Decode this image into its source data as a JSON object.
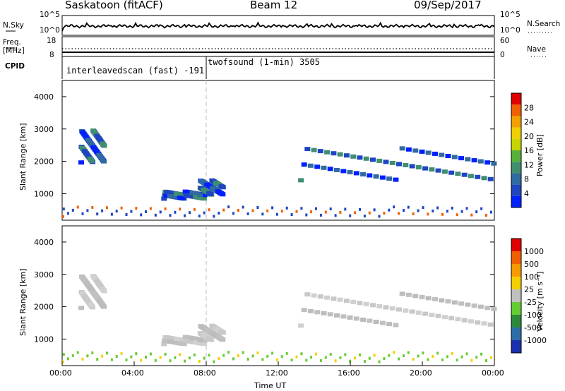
{
  "header": {
    "radar": "Saskatoon (fitACF)",
    "beam": "Beam 12",
    "date": "09/Sep/2017"
  },
  "top_panels": {
    "nsky_label": "N.Sky",
    "nsky_ticks": [
      "10^5",
      "10^0"
    ],
    "nsearch_label": "N.Search",
    "nsearch_ticks": [
      "10^5",
      "10^0"
    ],
    "freq_label": "Freq.",
    "freq_unit": "[MHz]",
    "freq_ticks": [
      "18",
      "8"
    ],
    "nave_label": "Nave",
    "nave_ticks": [
      "60",
      "0"
    ],
    "cpid_label": "CPID",
    "cpid_segments": [
      {
        "text": "interleavedscan (fast) -191",
        "from_hour": 0,
        "to_hour": 8
      },
      {
        "text": "twofsound (1-min) 3505",
        "from_hour": 8,
        "to_hour": 24
      }
    ]
  },
  "chart_data": [
    {
      "type": "heatmap",
      "title": "",
      "ylabel": "Slant Range [km]",
      "yticks": [
        "4000",
        "3000",
        "2000",
        "1000"
      ],
      "ylim": [
        180,
        4500
      ],
      "xlim": [
        0,
        24
      ],
      "colorbar": {
        "label": "Power [dB]",
        "ticks": [
          "28",
          "24",
          "20",
          "16",
          "12",
          "8",
          "4"
        ],
        "colors": [
          "#0020ff",
          "#1f45c2",
          "#2f6aa0",
          "#3f8f6e",
          "#58b03a",
          "#c8d400",
          "#f0d000",
          "#f2a000",
          "#f06000",
          "#e00000"
        ]
      },
      "dominant_echo_power_db": 8,
      "echo_regions": [
        {
          "t_start": 0.9,
          "t_end": 2.2,
          "range_start": 1900,
          "range_end": 2900,
          "note": "patch"
        },
        {
          "t_start": 5.5,
          "t_end": 7.8,
          "range_start": 780,
          "range_end": 1000
        },
        {
          "t_start": 7.5,
          "t_end": 8.8,
          "range_start": 900,
          "range_end": 1350
        },
        {
          "t_start": 13.1,
          "t_end": 24.0,
          "range_start": 1350,
          "range_end": 2350
        }
      ]
    },
    {
      "type": "heatmap",
      "title": "",
      "ylabel": "Slant Range [km]",
      "yticks": [
        "4000",
        "3000",
        "2000",
        "1000"
      ],
      "ylim": [
        180,
        4500
      ],
      "xlim": [
        0,
        24
      ],
      "xlabel": "Time UT",
      "xticks": [
        "00:00",
        "04:00",
        "08:00",
        "12:00",
        "16:00",
        "20:00",
        "00:00"
      ],
      "colorbar": {
        "label": "Velocity [m s⁻¹]",
        "ticks": [
          "1000",
          "500",
          "100",
          "25",
          "-25",
          "-100",
          "-500",
          "-1000"
        ],
        "colors": [
          "#1a30b0",
          "#2d6ea8",
          "#2c8a3a",
          "#66cc33",
          "#c0c0c0",
          "#f5d000",
          "#f59a00",
          "#f06000",
          "#e00000"
        ]
      },
      "dominant_echo_velocity_ms": 0
    }
  ]
}
